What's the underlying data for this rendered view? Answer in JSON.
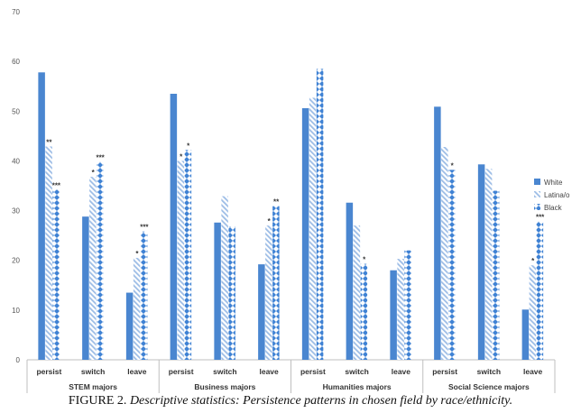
{
  "chart_data": {
    "type": "bar",
    "ylim": [
      0,
      70
    ],
    "yticks": [
      "0",
      "10",
      "20",
      "30",
      "40",
      "50",
      "60",
      "70"
    ],
    "groups": [
      {
        "label": "STEM majors",
        "categories": [
          "persist",
          "switch",
          "leave"
        ]
      },
      {
        "label": "Business majors",
        "categories": [
          "persist",
          "switch",
          "leave"
        ]
      },
      {
        "label": "Humanities majors",
        "categories": [
          "persist",
          "switch",
          "leave"
        ]
      },
      {
        "label": "Social Science majors",
        "categories": [
          "persist",
          "switch",
          "leave"
        ]
      }
    ],
    "series": [
      {
        "name": "White",
        "color": "#4a86d0",
        "values": [
          57.8,
          28.8,
          13.5,
          53.5,
          27.6,
          19.2,
          50.6,
          31.6,
          18.0,
          50.9,
          39.3,
          10.1
        ]
      },
      {
        "name": "Latina/o",
        "color": "#9dbde6",
        "values": [
          42.9,
          36.8,
          20.5,
          40.0,
          32.9,
          27.0,
          52.7,
          27.0,
          20.3,
          42.8,
          38.4,
          19.0
        ]
      },
      {
        "name": "Black",
        "color": "#3f82d4",
        "values": [
          34.2,
          39.8,
          25.8,
          42.2,
          26.8,
          30.9,
          58.5,
          19.3,
          22.0,
          38.2,
          34.0,
          27.8
        ]
      }
    ],
    "significance": [
      [
        "",
        "",
        "",
        "",
        "",
        "",
        "",
        "",
        "",
        "",
        "",
        ""
      ],
      [
        "**",
        "*",
        "*",
        "*",
        "",
        "*",
        "",
        "",
        "",
        "",
        "",
        "*"
      ],
      [
        "***",
        "***",
        "***",
        "*",
        "",
        "**",
        "",
        "*",
        "",
        "*",
        "",
        "***"
      ]
    ],
    "legend_position": "right",
    "grid": false
  },
  "caption": {
    "label": "FIGURE 2.",
    "text": "Descriptive statistics: Persistence patterns in chosen field by race/ethnicity."
  }
}
